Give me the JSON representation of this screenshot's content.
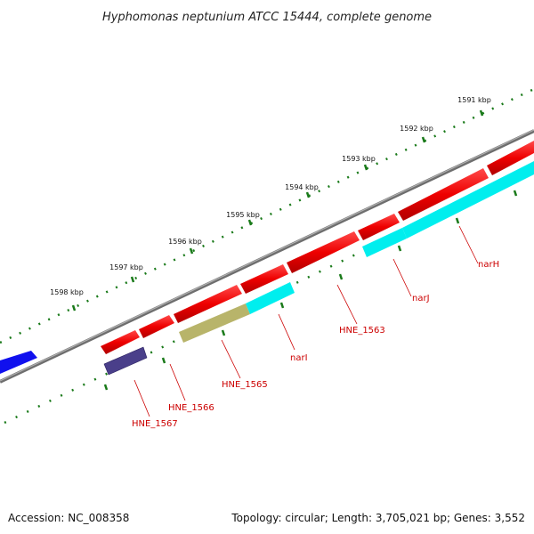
{
  "title": "Hyphomonas neptunium ATCC 15444, complete genome",
  "footer": {
    "accession": "Accession: NC_008358",
    "summary": "Topology: circular; Length: 3,705,021 bp; Genes: 3,552"
  },
  "ticks": [
    {
      "label": "1591 kbp"
    },
    {
      "label": "1592 kbp"
    },
    {
      "label": "1593 kbp"
    },
    {
      "label": "1594 kbp"
    },
    {
      "label": "1595 kbp"
    },
    {
      "label": "1596 kbp"
    },
    {
      "label": "1597 kbp"
    },
    {
      "label": "1598 kbp"
    }
  ],
  "gene_labels": [
    {
      "label": "narH"
    },
    {
      "label": "narJ"
    },
    {
      "label": "HNE_1563"
    },
    {
      "label": "narI"
    },
    {
      "label": "HNE_1565"
    },
    {
      "label": "HNE_1566"
    },
    {
      "label": "HNE_1567"
    }
  ],
  "colors": {
    "cds": "#ee0000",
    "gene_highlight": "#00eeee",
    "gene_olive": "#b8b46a",
    "gene_purple": "#4a3f8a",
    "gene_blue": "#1010ee",
    "backbone": "#888888",
    "tick": "#1a7a1a",
    "label": "#cc0000"
  }
}
